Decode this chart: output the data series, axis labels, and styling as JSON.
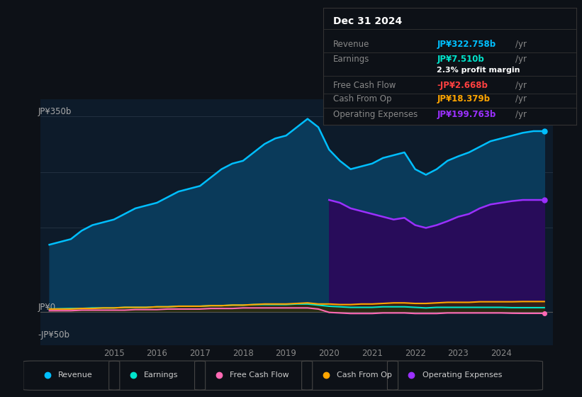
{
  "background_color": "#0d1117",
  "plot_bg_color": "#0d1b2a",
  "years": [
    2013.5,
    2014,
    2014.25,
    2014.5,
    2014.75,
    2015,
    2015.25,
    2015.5,
    2015.75,
    2016,
    2016.25,
    2016.5,
    2016.75,
    2017,
    2017.25,
    2017.5,
    2017.75,
    2018,
    2018.25,
    2018.5,
    2018.75,
    2019,
    2019.25,
    2019.5,
    2019.75,
    2020,
    2020.25,
    2020.5,
    2020.75,
    2021,
    2021.25,
    2021.5,
    2021.75,
    2022,
    2022.25,
    2022.5,
    2022.75,
    2023,
    2023.25,
    2023.5,
    2023.75,
    2024,
    2024.25,
    2024.5,
    2024.75,
    2025
  ],
  "revenue": [
    120,
    130,
    145,
    155,
    160,
    165,
    175,
    185,
    190,
    195,
    205,
    215,
    220,
    225,
    240,
    255,
    265,
    270,
    285,
    300,
    310,
    315,
    330,
    345,
    330,
    290,
    270,
    255,
    260,
    265,
    275,
    280,
    285,
    255,
    245,
    255,
    270,
    278,
    285,
    295,
    305,
    310,
    315,
    320,
    323,
    323
  ],
  "earnings": [
    5,
    6,
    6,
    7,
    7,
    7,
    8,
    8,
    8,
    9,
    9,
    10,
    10,
    10,
    11,
    11,
    12,
    12,
    13,
    13,
    13,
    13,
    14,
    14,
    12,
    10,
    9,
    8,
    8,
    8,
    9,
    9,
    9,
    8,
    7,
    8,
    8,
    8,
    8,
    8,
    8,
    8,
    7.5,
    7.5,
    7.5,
    7.5
  ],
  "free_cash_flow": [
    2,
    2,
    3,
    3,
    3,
    3,
    3,
    4,
    4,
    4,
    5,
    5,
    5,
    5,
    6,
    6,
    6,
    7,
    7,
    7,
    7,
    7,
    7,
    7,
    5,
    -1,
    -2,
    -3,
    -3,
    -3,
    -2,
    -2,
    -2,
    -3,
    -3,
    -3,
    -2,
    -2,
    -2,
    -2,
    -2,
    -2,
    -2.5,
    -2.7,
    -2.7,
    -2.7
  ],
  "cash_from_op": [
    5,
    5,
    6,
    6,
    7,
    7,
    8,
    8,
    8,
    9,
    9,
    10,
    10,
    10,
    11,
    11,
    12,
    12,
    13,
    14,
    14,
    14,
    15,
    16,
    14,
    14,
    13,
    13,
    14,
    14,
    15,
    16,
    16,
    15,
    15,
    16,
    17,
    17,
    17,
    18,
    18,
    18,
    18,
    18.4,
    18.4,
    18.4
  ],
  "operating_expenses_x": [
    2020,
    2020.25,
    2020.5,
    2020.75,
    2021,
    2021.25,
    2021.5,
    2021.75,
    2022,
    2022.25,
    2022.5,
    2022.75,
    2023,
    2023.25,
    2023.5,
    2023.75,
    2024,
    2024.25,
    2024.5,
    2024.75,
    2025
  ],
  "operating_expenses_y": [
    200,
    195,
    185,
    180,
    175,
    170,
    165,
    168,
    155,
    150,
    155,
    162,
    170,
    175,
    185,
    192,
    195,
    198,
    200,
    200,
    200
  ],
  "revenue_color": "#00bfff",
  "earnings_color": "#00e5cc",
  "free_cash_flow_color": "#ff69b4",
  "cash_from_op_color": "#ffa500",
  "operating_expenses_color": "#9b30ff",
  "legend_items": [
    "Revenue",
    "Earnings",
    "Free Cash Flow",
    "Cash From Op",
    "Operating Expenses"
  ],
  "legend_colors": [
    "#00bfff",
    "#00e5cc",
    "#ff69b4",
    "#ffa500",
    "#9b30ff"
  ],
  "info_box": {
    "date": "Dec 31 2024",
    "revenue_label": "Revenue",
    "revenue_value": "JP¥322.758b",
    "revenue_color": "#00bfff",
    "earnings_label": "Earnings",
    "earnings_value": "JP¥7.510b",
    "earnings_color": "#00e5cc",
    "margin_text": "2.3% profit margin",
    "fcf_label": "Free Cash Flow",
    "fcf_value": "-JP¥2.668b",
    "fcf_color": "#ff4040",
    "cop_label": "Cash From Op",
    "cop_value": "JP¥18.379b",
    "cop_color": "#ffa500",
    "opex_label": "Operating Expenses",
    "opex_value": "JP¥199.763b",
    "opex_color": "#9b30ff"
  },
  "x_ticks": [
    2015,
    2016,
    2017,
    2018,
    2019,
    2020,
    2021,
    2022,
    2023,
    2024
  ],
  "ylim": [
    -60,
    380
  ],
  "xlim": [
    2013.3,
    2025.2
  ]
}
